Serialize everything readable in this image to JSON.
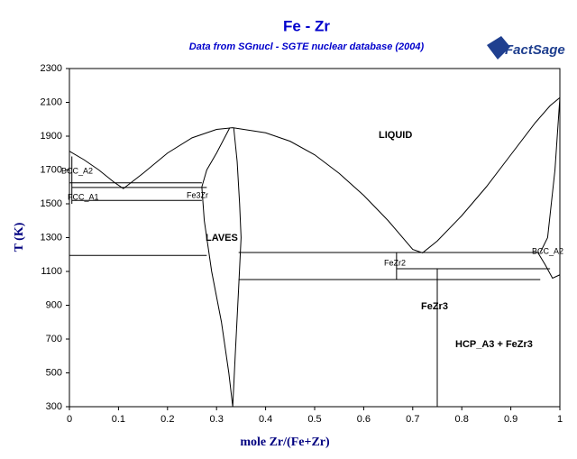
{
  "chart_data": {
    "type": "line",
    "title": "Fe - Zr",
    "subtitle": "Data from SGnucl - SGTE nuclear database (2004)",
    "logo": "FactSage",
    "x_label": "mole Zr/(Fe+Zr)",
    "y_label": "T (K)",
    "xlim": [
      0,
      1
    ],
    "ylim": [
      300,
      2300
    ],
    "xticks": [
      0,
      0.1,
      0.2,
      0.3,
      0.4,
      0.5,
      0.6,
      0.7,
      0.8,
      0.9,
      1
    ],
    "yticks": [
      300,
      500,
      700,
      900,
      1100,
      1300,
      1500,
      1700,
      1900,
      2100,
      2300
    ],
    "grid": false,
    "annotations": [
      "LIQUID",
      "BCC_A2",
      "FCC_A1",
      "Fe3Zr",
      "LAVES",
      "FeZr2",
      "FeZr3",
      "HCP_A3 + FeZr3",
      "BCC_A2"
    ],
    "series": [
      {
        "color": "#000000",
        "x": [
          0,
          0.03,
          0.06,
          0.09,
          0.11,
          0.15,
          0.2,
          0.25,
          0.3,
          0.333,
          0.4,
          0.45,
          0.5,
          0.55,
          0.6,
          0.65,
          0.7,
          0.72,
          0.75,
          0.8,
          0.85,
          0.9,
          0.95,
          0.98,
          1
        ],
        "values": [
          1811,
          1760,
          1700,
          1630,
          1590,
          1680,
          1800,
          1890,
          1940,
          1950,
          1920,
          1870,
          1790,
          1680,
          1550,
          1400,
          1230,
          1210,
          1280,
          1430,
          1600,
          1790,
          1980,
          2080,
          2128
        ]
      },
      {
        "color": "#000000",
        "x": [
          0.327,
          0.3,
          0.28,
          0.27,
          0.275,
          0.29,
          0.31,
          0.325,
          0.333
        ],
        "values": [
          1950,
          1800,
          1700,
          1600,
          1400,
          1100,
          800,
          500,
          300
        ]
      },
      {
        "color": "#000000",
        "x": [
          0.335,
          0.342,
          0.347,
          0.35,
          0.345,
          0.338,
          0.333
        ],
        "values": [
          1950,
          1750,
          1500,
          1300,
          1000,
          600,
          300
        ]
      },
      {
        "color": "#000000",
        "x": [
          0,
          0.27
        ],
        "values": [
          1624,
          1624
        ]
      },
      {
        "color": "#000000",
        "x": [
          0.005,
          0.28
        ],
        "values": [
          1597,
          1597
        ]
      },
      {
        "color": "#000000",
        "x": [
          0.005,
          0.27
        ],
        "values": [
          1520,
          1520
        ]
      },
      {
        "color": "#000000",
        "x": [
          0.005,
          0.005
        ],
        "values": [
          1780,
          1500
        ]
      },
      {
        "color": "#000000",
        "x": [
          0,
          0.28
        ],
        "values": [
          1195,
          1195
        ]
      },
      {
        "color": "#000000",
        "x": [
          0.345,
          0.955
        ],
        "values": [
          1212,
          1212
        ]
      },
      {
        "color": "#000000",
        "x": [
          0.667,
          0.98
        ],
        "values": [
          1116,
          1116
        ]
      },
      {
        "color": "#000000",
        "x": [
          0.345,
          0.96
        ],
        "values": [
          1052,
          1052
        ]
      },
      {
        "color": "#000000",
        "x": [
          0.667,
          0.667
        ],
        "values": [
          1212,
          1052
        ]
      },
      {
        "color": "#000000",
        "x": [
          0.75,
          0.75
        ],
        "values": [
          1116,
          300
        ]
      },
      {
        "color": "#000000",
        "x": [
          1,
          0.99,
          0.975,
          0.96
        ],
        "values": [
          2128,
          1700,
          1300,
          1212
        ]
      },
      {
        "color": "#000000",
        "x": [
          0.955,
          0.97,
          0.985,
          1
        ],
        "values": [
          1212,
          1140,
          1060,
          1080
        ]
      }
    ]
  }
}
